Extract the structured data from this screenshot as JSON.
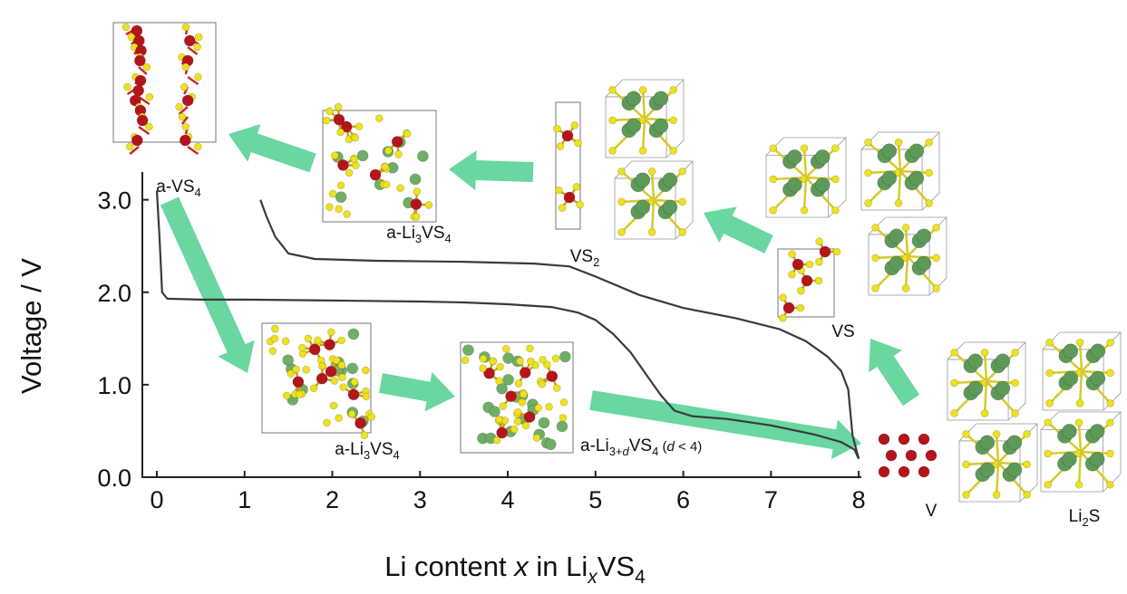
{
  "chart_data": {
    "type": "line",
    "ylabel": "Voltage / V",
    "xlabel": [
      "Li content ",
      "x",
      " in Li",
      "x",
      "VS",
      "4"
    ],
    "xlim": [
      -0.165,
      8.03
    ],
    "ylim": [
      0,
      3.3
    ],
    "xticks": [
      0,
      1,
      2,
      3,
      4,
      5,
      6,
      7,
      8
    ],
    "yticks": [
      {
        "value": 0,
        "label": "0.0"
      },
      {
        "value": 1,
        "label": "1.0"
      },
      {
        "value": 2,
        "label": "2.0"
      },
      {
        "value": 3,
        "label": "3.0"
      }
    ],
    "series": [
      {
        "color": "#3a3a3a",
        "x": [
          0,
          0.03,
          0.06,
          0.12,
          0.5,
          1,
          2,
          3,
          3.5,
          4,
          4.5,
          4.8,
          5,
          5.2,
          5.4,
          5.6,
          5.75,
          5.9,
          6.1,
          6.5,
          7,
          7.5,
          7.8,
          7.95,
          8
        ],
        "values": [
          3.1,
          2.6,
          2.0,
          1.93,
          1.92,
          1.92,
          1.91,
          1.9,
          1.89,
          1.87,
          1.84,
          1.78,
          1.7,
          1.55,
          1.35,
          1.08,
          0.88,
          0.72,
          0.66,
          0.63,
          0.56,
          0.46,
          0.38,
          0.3,
          0.2
        ]
      },
      {
        "color": "#3a3a3a",
        "x": [
          8,
          7.93,
          7.88,
          7.8,
          7.65,
          7.4,
          7.1,
          6.6,
          6.0,
          5.5,
          5.0,
          4.7,
          4.3,
          3.5,
          2.5,
          1.8,
          1.5,
          1.35,
          1.25,
          1.18
        ],
        "values": [
          0.2,
          0.45,
          0.95,
          1.15,
          1.3,
          1.47,
          1.6,
          1.72,
          1.83,
          1.97,
          2.17,
          2.28,
          2.31,
          2.33,
          2.34,
          2.36,
          2.42,
          2.6,
          2.82,
          3.0
        ]
      }
    ],
    "annotations": {
      "a_vs4": [
        "a-VS",
        "4"
      ],
      "a_li3vs4_top": [
        "a-Li",
        "3",
        "VS",
        "4"
      ],
      "vs2": [
        "VS",
        "2"
      ],
      "vs": "VS",
      "v": "V",
      "li2s": [
        "Li",
        "2",
        "S"
      ],
      "a_li3vs4_bottom": [
        "a-Li",
        "3",
        "VS",
        "4"
      ],
      "a_li3dvs4": [
        "a-Li",
        "3+",
        "d",
        "VS",
        "4",
        " (",
        "d",
        " < 4)"
      ]
    }
  }
}
